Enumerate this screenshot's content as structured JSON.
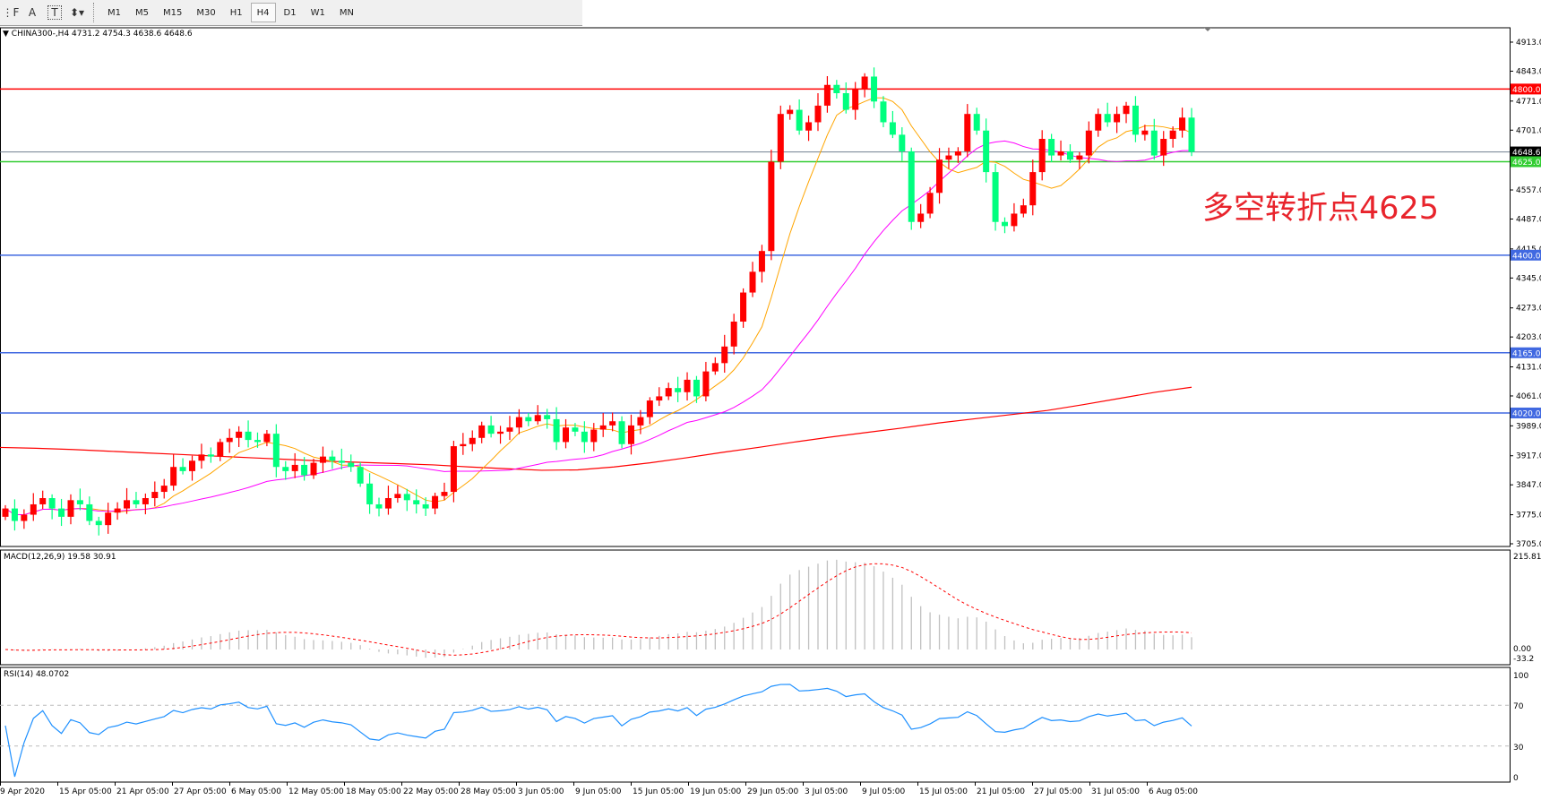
{
  "toolbar": {
    "tools": [
      {
        "icon": "period-separator-icon",
        "glyph": "⋮F"
      },
      {
        "icon": "text-icon",
        "glyph": "A"
      },
      {
        "icon": "text-label-icon",
        "glyph": "T"
      },
      {
        "icon": "arrows-icon",
        "glyph": "⬍▾"
      }
    ],
    "timeframes": [
      "M1",
      "M5",
      "M15",
      "M30",
      "H1",
      "H4",
      "D1",
      "W1",
      "MN"
    ],
    "active_timeframe": "H4"
  },
  "symbol_header": "CHINA300-,H4  4731.2 4754.3 4638.6 4648.6",
  "annotation": "多空转折点4625",
  "colors": {
    "bull": "#ff0000",
    "bear": "#00ff7f",
    "ma_fast": "#ffa500",
    "ma_mid": "#ff00ff",
    "ma_slow": "#ff0000",
    "resistance": "#ff0000",
    "pivot": "#32cd32",
    "support": "#4169e1",
    "bid": "#708090",
    "rsi": "#1e90ff",
    "macd_hist": "#c0c0c0",
    "macd_signal": "#ff0000",
    "annotation": "#e8242c"
  },
  "chart_data": [
    {
      "type": "candlestick",
      "last_bar": {
        "open": 4731.2,
        "high": 4754.3,
        "low": 4638.6,
        "close": 4648.6
      },
      "first_open": 3770,
      "closes": [
        3790,
        3760,
        3775,
        3800,
        3815,
        3790,
        3770,
        3810,
        3800,
        3760,
        3750,
        3780,
        3790,
        3810,
        3800,
        3815,
        3830,
        3845,
        3890,
        3880,
        3905,
        3920,
        3915,
        3950,
        3960,
        3975,
        3955,
        3950,
        3970,
        3890,
        3880,
        3895,
        3870,
        3900,
        3915,
        3905,
        3900,
        3890,
        3850,
        3800,
        3790,
        3815,
        3825,
        3810,
        3800,
        3790,
        3820,
        3830,
        3940,
        3945,
        3960,
        3990,
        3970,
        3975,
        3985,
        4010,
        4000,
        4015,
        4005,
        3950,
        3985,
        3975,
        3950,
        3980,
        3990,
        4000,
        3945,
        3990,
        4010,
        4050,
        4060,
        4080,
        4070,
        4100,
        4060,
        4120,
        4140,
        4180,
        4240,
        4310,
        4360,
        4410,
        4625,
        4740,
        4750,
        4700,
        4720,
        4760,
        4810,
        4790,
        4750,
        4800,
        4830,
        4770,
        4720,
        4690,
        4650,
        4480,
        4500,
        4550,
        4630,
        4640,
        4650,
        4740,
        4700,
        4600,
        4480,
        4470,
        4500,
        4520,
        4600,
        4680,
        4640,
        4650,
        4630,
        4640,
        4700,
        4740,
        4720,
        4740,
        4760,
        4690,
        4700,
        4640,
        4680,
        4700,
        4731.2,
        4648.6
      ],
      "slow_ma": [
        3937,
        3935,
        3932,
        3928,
        3924,
        3920,
        3916,
        3912,
        3908,
        3904,
        3901,
        3898,
        3895,
        3890,
        3886,
        3882,
        3883,
        3890,
        3900,
        3912,
        3925,
        3937,
        3950,
        3962,
        3973,
        3984,
        3996,
        4006,
        4016,
        4026,
        4040,
        4055,
        4070,
        4082
      ],
      "y_axis_ticks": [
        4913.0,
        4843.0,
        4771.0,
        4701.0,
        4557.0,
        4487.0,
        4415.0,
        4345.0,
        4273.0,
        4203.0,
        4131.0,
        4061.0,
        3989.0,
        3917.0,
        3847.0,
        3775.0,
        3705.0
      ],
      "ylim": [
        3705.0,
        4913.0
      ],
      "levels": [
        {
          "price": 4800.0,
          "label": "4800.0",
          "role": "resistance"
        },
        {
          "price": 4648.6,
          "label": "4648.6",
          "role": "bid"
        },
        {
          "price": 4625.0,
          "label": "4625.0",
          "role": "pivot"
        },
        {
          "price": 4400.0,
          "label": "4400.0",
          "role": "support"
        },
        {
          "price": 4165.0,
          "label": "4165.0",
          "role": "support"
        },
        {
          "price": 4020.0,
          "label": "4020.0",
          "role": "support"
        }
      ],
      "x_tick_labels": [
        "9 Apr 2020",
        "15 Apr 05:00",
        "21 Apr 05:00",
        "27 Apr 05:00",
        "6 May 05:00",
        "12 May 05:00",
        "18 May 05:00",
        "22 May 05:00",
        "28 May 05:00",
        "3 Jun 05:00",
        "9 Jun 05:00",
        "15 Jun 05:00",
        "19 Jun 05:00",
        "29 Jun 05:00",
        "3 Jul 05:00",
        "9 Jul 05:00",
        "15 Jul 05:00",
        "21 Jul 05:00",
        "27 Jul 05:00",
        "31 Jul 05:00",
        "6 Aug 05:00"
      ]
    },
    {
      "type": "bar",
      "title": "MACD(12,26,9) 19.58 30.91",
      "y_axis_ticks": [
        "215.81",
        "0.00",
        "-33.2"
      ],
      "ylim": [
        -33.2,
        215.81
      ]
    },
    {
      "type": "line",
      "title": "RSI(14) 48.0702",
      "y_axis_ticks": [
        "100",
        "70",
        "30",
        "0"
      ],
      "ylim": [
        0,
        100
      ],
      "levels": [
        70,
        30
      ]
    }
  ]
}
